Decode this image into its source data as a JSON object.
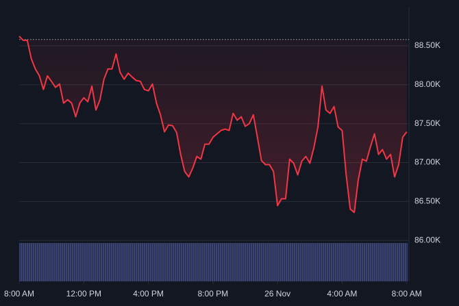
{
  "chart_data": {
    "type": "line",
    "x": [
      0,
      0.25,
      0.5,
      0.75,
      1,
      1.25,
      1.5,
      1.75,
      2,
      2.25,
      2.5,
      2.75,
      3,
      3.25,
      3.5,
      3.75,
      4,
      4.25,
      4.5,
      4.75,
      5,
      5.25,
      5.5,
      5.75,
      6,
      6.25,
      6.5,
      6.75,
      7,
      7.25,
      7.5,
      7.75,
      8,
      8.25,
      8.5,
      8.75,
      9,
      9.25,
      9.5,
      9.75,
      10,
      10.25,
      10.5,
      10.75,
      11,
      11.25,
      11.5,
      11.75,
      12,
      12.25,
      12.5,
      12.75,
      13,
      13.25,
      13.5,
      13.75,
      14,
      14.25,
      14.5,
      14.75,
      15,
      15.25,
      15.5,
      15.75,
      16,
      16.25,
      16.5,
      16.75,
      17,
      17.25,
      17.5,
      17.75,
      18,
      18.25,
      18.5,
      18.75,
      19,
      19.25,
      19.5,
      19.75,
      20,
      20.25,
      20.5,
      20.75,
      21,
      21.25,
      21.5,
      21.75,
      22,
      22.25,
      22.5,
      22.75,
      23,
      23.25,
      23.5,
      23.75,
      24
    ],
    "series": [
      {
        "color": "#f23645",
        "values": [
          88623,
          88570,
          88570,
          88333,
          88202,
          88114,
          87939,
          88114,
          88044,
          87965,
          88009,
          87763,
          87807,
          87763,
          87588,
          87763,
          87833,
          87781,
          87982,
          87675,
          87807,
          88070,
          88202,
          88202,
          88395,
          88158,
          88070,
          88149,
          88097,
          88053,
          88044,
          87939,
          87921,
          88009,
          87763,
          87614,
          87395,
          87483,
          87474,
          87386,
          87105,
          86886,
          86816,
          86930,
          87079,
          87044,
          87237,
          87237,
          87325,
          87369,
          87412,
          87430,
          87412,
          87632,
          87544,
          87588,
          87465,
          87500,
          87614,
          87325,
          87026,
          86974,
          86974,
          86886,
          86447,
          86535,
          86535,
          87044,
          86991,
          86842,
          87018,
          87079,
          86991,
          87193,
          87456,
          87982,
          87675,
          87632,
          87719,
          87456,
          87412,
          86842,
          86403,
          86360,
          86781,
          87044,
          87018,
          87202,
          87369,
          87105,
          87167,
          87044,
          87105,
          86816,
          86974,
          87325,
          87395
        ]
      }
    ],
    "reference_line": 88580,
    "xlim": [
      0,
      24.14
    ],
    "xticks": [
      {
        "value": 0,
        "label": "8:00 AM"
      },
      {
        "value": 4,
        "label": "12:00 PM"
      },
      {
        "value": 8,
        "label": "4:00 PM"
      },
      {
        "value": 12,
        "label": "8:00 PM"
      },
      {
        "value": 16,
        "label": "26 Nov"
      },
      {
        "value": 20,
        "label": "4:00 AM"
      },
      {
        "value": 24,
        "label": "8:00 AM"
      }
    ],
    "ylim": [
      85475,
      89000
    ],
    "yticks": [
      {
        "value": 86000,
        "label": "86.00K"
      },
      {
        "value": 86500,
        "label": "86.50K"
      },
      {
        "value": 87000,
        "label": "87.00K"
      },
      {
        "value": 87500,
        "label": "87.50K"
      },
      {
        "value": 88000,
        "label": "88.00K"
      },
      {
        "value": 88500,
        "label": "88.50K"
      }
    ],
    "grid": true
  }
}
